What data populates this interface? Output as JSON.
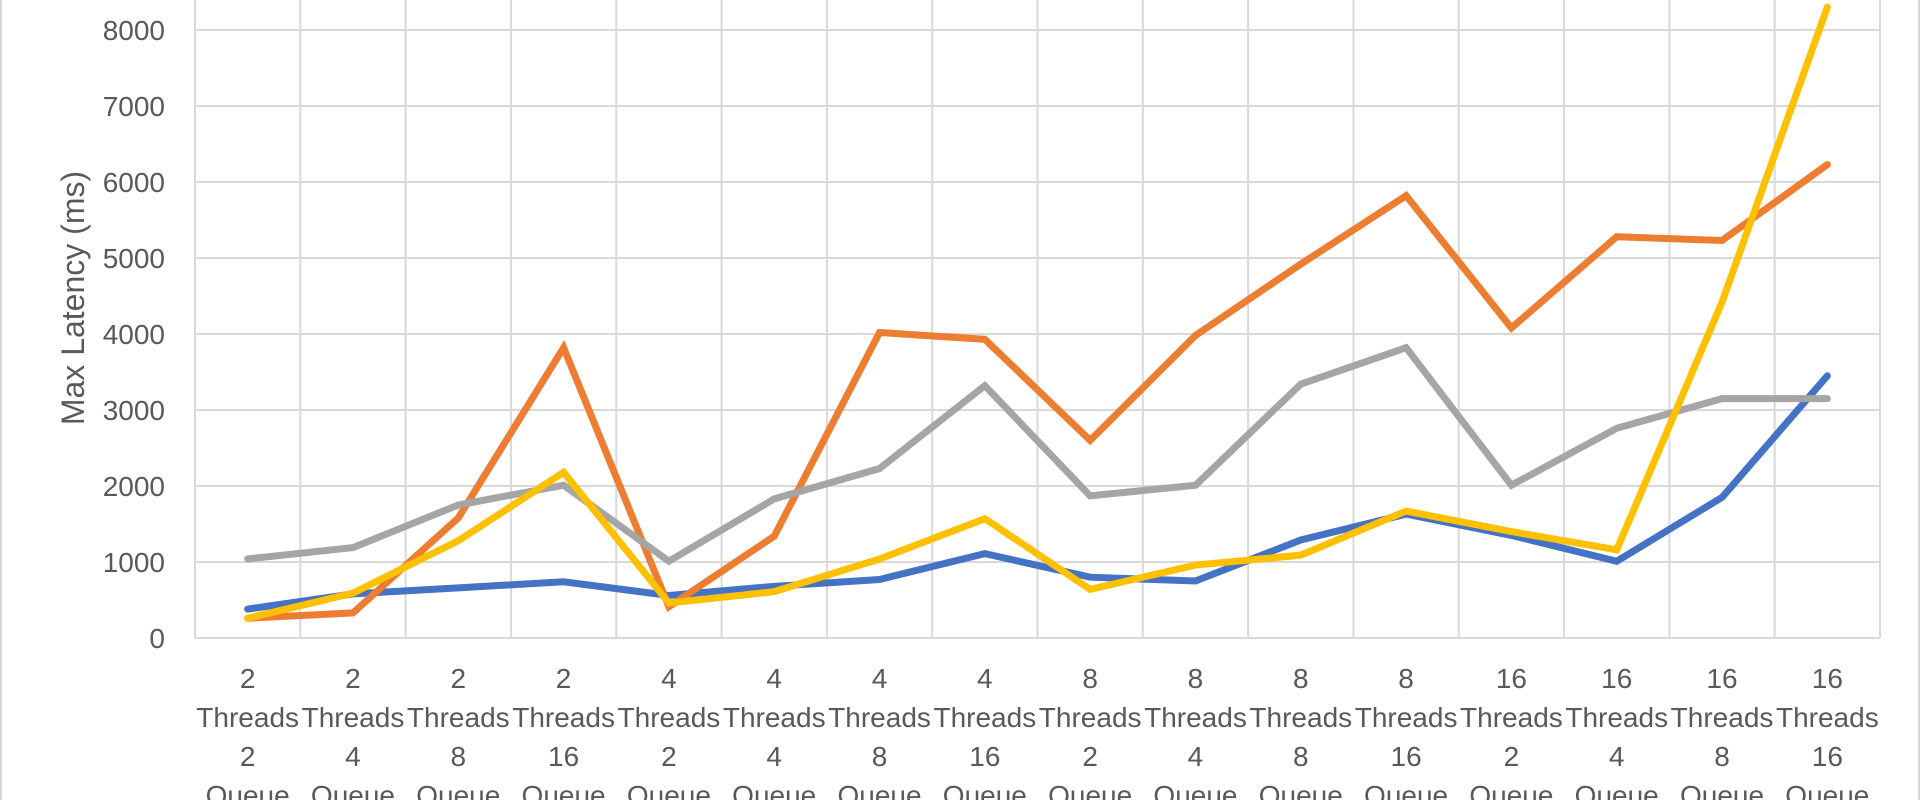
{
  "chart_data": {
    "type": "line",
    "ylabel": "Max Latency (ms)",
    "xlabel": "",
    "ylim": [
      0,
      8000
    ],
    "yticks": [
      0,
      1000,
      2000,
      3000,
      4000,
      5000,
      6000,
      7000,
      8000
    ],
    "grid": true,
    "categories": [
      [
        "2",
        "Threads",
        "2",
        "Queue"
      ],
      [
        "2",
        "Threads",
        "4",
        "Queue"
      ],
      [
        "2",
        "Threads",
        "8",
        "Queue"
      ],
      [
        "2",
        "Threads",
        "16",
        "Queue"
      ],
      [
        "4",
        "Threads",
        "2",
        "Queue"
      ],
      [
        "4",
        "Threads",
        "4",
        "Queue"
      ],
      [
        "4",
        "Threads",
        "8",
        "Queue"
      ],
      [
        "4",
        "Threads",
        "16",
        "Queue"
      ],
      [
        "8",
        "Threads",
        "2",
        "Queue"
      ],
      [
        "8",
        "Threads",
        "4",
        "Queue"
      ],
      [
        "8",
        "Threads",
        "8",
        "Queue"
      ],
      [
        "8",
        "Threads",
        "16",
        "Queue"
      ],
      [
        "16",
        "Threads",
        "2",
        "Queue"
      ],
      [
        "16",
        "Threads",
        "4",
        "Queue"
      ],
      [
        "16",
        "Threads",
        "8",
        "Queue"
      ],
      [
        "16",
        "Threads",
        "16",
        "Queue"
      ]
    ],
    "series": [
      {
        "color": "#4472c4",
        "values": [
          380,
          580,
          660,
          740,
          560,
          680,
          770,
          1110,
          800,
          750,
          1290,
          1630,
          1350,
          1010,
          1850,
          3450
        ]
      },
      {
        "color": "#ed7d31",
        "values": [
          260,
          330,
          1580,
          3820,
          410,
          1340,
          4020,
          3930,
          2600,
          3980,
          4920,
          5820,
          4080,
          5280,
          5230,
          6230
        ]
      },
      {
        "color": "#a5a5a5",
        "values": [
          1040,
          1190,
          1750,
          2010,
          1010,
          1830,
          2230,
          3320,
          1870,
          2010,
          3340,
          3820,
          2010,
          2760,
          3150,
          3150
        ]
      },
      {
        "color": "#ffc000",
        "values": [
          260,
          590,
          1280,
          2180,
          460,
          610,
          1040,
          1570,
          640,
          960,
          1090,
          1670,
          1400,
          1160,
          4420,
          8300
        ]
      }
    ]
  }
}
